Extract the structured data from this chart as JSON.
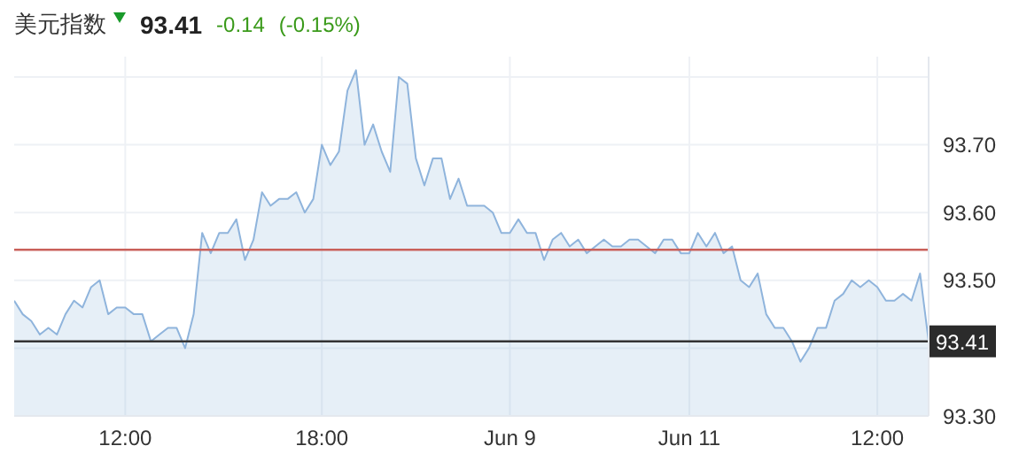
{
  "chart_data": {
    "type": "area",
    "title": "美元指数",
    "annotations": [
      "93.41",
      "-0.14",
      "(-0.15%)"
    ],
    "categories": [
      null,
      null,
      null,
      null,
      null,
      null,
      null,
      null,
      null,
      null,
      null,
      null,
      null,
      "12:00",
      null,
      null,
      null,
      null,
      null,
      null,
      null,
      null,
      null,
      null,
      null,
      null,
      null,
      null,
      null,
      null,
      null,
      null,
      null,
      null,
      null,
      null,
      "18:00",
      null,
      null,
      null,
      null,
      null,
      null,
      null,
      null,
      null,
      null,
      null,
      null,
      null,
      null,
      null,
      null,
      null,
      null,
      null,
      null,
      null,
      "Jun 9",
      null,
      null,
      null,
      null,
      null,
      null,
      null,
      null,
      null,
      null,
      null,
      null,
      null,
      null,
      null,
      null,
      null,
      null,
      null,
      null,
      "Jun 11",
      null,
      null,
      null,
      null,
      null,
      null,
      null,
      null,
      null,
      null,
      null,
      null,
      null,
      null,
      null,
      null,
      null,
      null,
      null,
      null,
      null,
      "12:00",
      null,
      null,
      null,
      null,
      null,
      null
    ],
    "series": [
      {
        "color": "#8fb4dc",
        "values": [
          93.47,
          93.45,
          93.44,
          93.42,
          93.43,
          93.42,
          93.45,
          93.47,
          93.46,
          93.49,
          93.5,
          93.45,
          93.46,
          93.46,
          93.45,
          93.45,
          93.41,
          93.42,
          93.43,
          93.43,
          93.4,
          93.45,
          93.57,
          93.54,
          93.57,
          93.57,
          93.59,
          93.53,
          93.56,
          93.63,
          93.61,
          93.62,
          93.62,
          93.63,
          93.6,
          93.62,
          93.7,
          93.67,
          93.69,
          93.78,
          93.81,
          93.7,
          93.73,
          93.69,
          93.66,
          93.8,
          93.79,
          93.68,
          93.64,
          93.68,
          93.68,
          93.62,
          93.65,
          93.61,
          93.61,
          93.61,
          93.6,
          93.57,
          93.57,
          93.59,
          93.57,
          93.57,
          93.53,
          93.56,
          93.57,
          93.55,
          93.56,
          93.54,
          93.55,
          93.56,
          93.55,
          93.55,
          93.56,
          93.56,
          93.55,
          93.54,
          93.56,
          93.56,
          93.54,
          93.54,
          93.57,
          93.55,
          93.57,
          93.54,
          93.55,
          93.5,
          93.49,
          93.51,
          93.45,
          93.43,
          93.43,
          93.41,
          93.38,
          93.4,
          93.43,
          93.43,
          93.47,
          93.48,
          93.5,
          93.49,
          93.5,
          93.49,
          93.47,
          93.47,
          93.48,
          93.47,
          93.51,
          93.41
        ]
      }
    ],
    "ylim": [
      93.3,
      93.83
    ],
    "yticks": [
      {
        "value": 93.3,
        "label": "93.30"
      },
      {
        "value": 93.4,
        "label": null
      },
      {
        "value": 93.5,
        "label": "93.50"
      },
      {
        "value": 93.6,
        "label": "93.60"
      },
      {
        "value": 93.7,
        "label": "93.70"
      },
      {
        "value": 93.8,
        "label": null
      }
    ],
    "ref_lines": [
      {
        "axis": "y",
        "value": 93.545,
        "color": "#c9605a"
      },
      {
        "axis": "y",
        "value": 93.41,
        "label": "93.41",
        "color": "#333333"
      }
    ],
    "grid": true
  }
}
